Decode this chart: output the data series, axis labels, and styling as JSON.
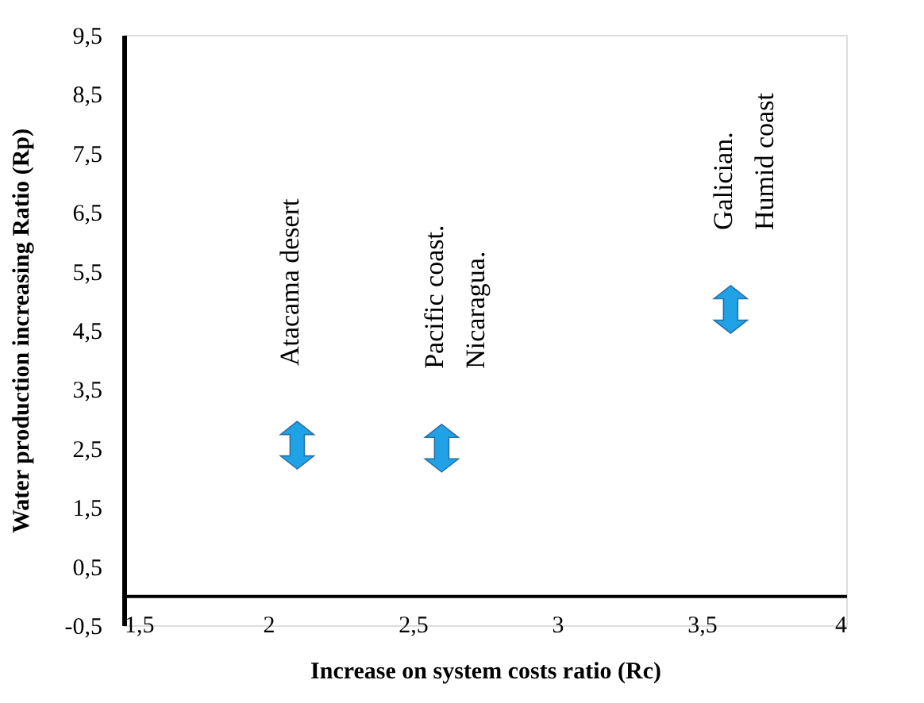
{
  "chart_data": {
    "type": "scatter",
    "xlabel": "Increase on system costs ratio (Rc)",
    "ylabel": "Water production increasing Ratio    (Rp)",
    "x": [
      2.1,
      2.6,
      3.6
    ],
    "values": [
      2.55,
      2.5,
      4.85
    ],
    "color": "#1fa3e6",
    "xlim": [
      1.5,
      4
    ],
    "xticks": [
      {
        "value": 1.5,
        "label": "1,5"
      },
      2,
      {
        "value": 2.5,
        "label": "2,5"
      },
      3,
      {
        "value": 3.5,
        "label": "3,5"
      },
      4
    ],
    "ylim": [
      -0.5,
      9.5
    ],
    "yticks": [
      {
        "value": -0.5,
        "label": "-0,5"
      },
      {
        "value": 0.5,
        "label": "0,5"
      },
      {
        "value": 1.5,
        "label": "1,5"
      },
      {
        "value": 2.5,
        "label": "2,5"
      },
      {
        "value": 3.5,
        "label": "3,5"
      },
      {
        "value": 4.5,
        "label": "4,5"
      },
      {
        "value": 5.5,
        "label": "5,5"
      },
      {
        "value": 6.5,
        "label": "6,5"
      },
      {
        "value": 7.5,
        "label": "7,5"
      },
      {
        "value": 8.5,
        "label": "8,5"
      },
      {
        "value": 9.5,
        "label": "9,5"
      }
    ],
    "annotations": [
      "Atacama desert",
      "Pacific coast.\nNicaragua.",
      "Galician.\nHumid coast"
    ],
    "grid": false
  }
}
